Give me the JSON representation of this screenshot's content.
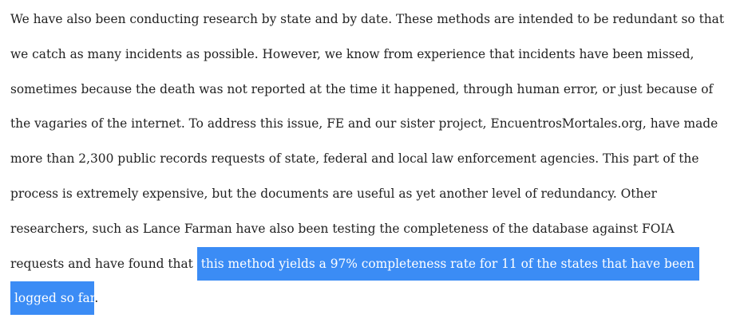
{
  "paragraph": {
    "lines": [
      "We have also been conducting research by state and by date. These methods are intended to be redundant so that",
      "we catch as many incidents as possible. However, we know from experience that incidents have been missed,",
      "sometimes because the death was not reported at the time it happened, through human error, or just because of",
      "the vagaries of the internet. To address this issue, FE and our sister project, EncuentrosMortales.org, have made",
      "more than 2,300 public records requests of state, federal and local law enforcement agencies. This part of the",
      "process is extremely expensive, but the documents are useful as yet another level of redundancy. Other",
      "researchers, such as Lance Farman have also been testing the completeness of the database against FOIA"
    ],
    "line8_prefix": "requests and have found that ",
    "highlight_part1": "this method yields a 97% completeness rate for 11 of the states that have been",
    "highlight_part2": "logged so far",
    "line9_suffix": "."
  },
  "colors": {
    "text": "#222222",
    "selection_background": "#3b8cf5",
    "selection_text": "#ffffff",
    "page_background": "#ffffff"
  }
}
